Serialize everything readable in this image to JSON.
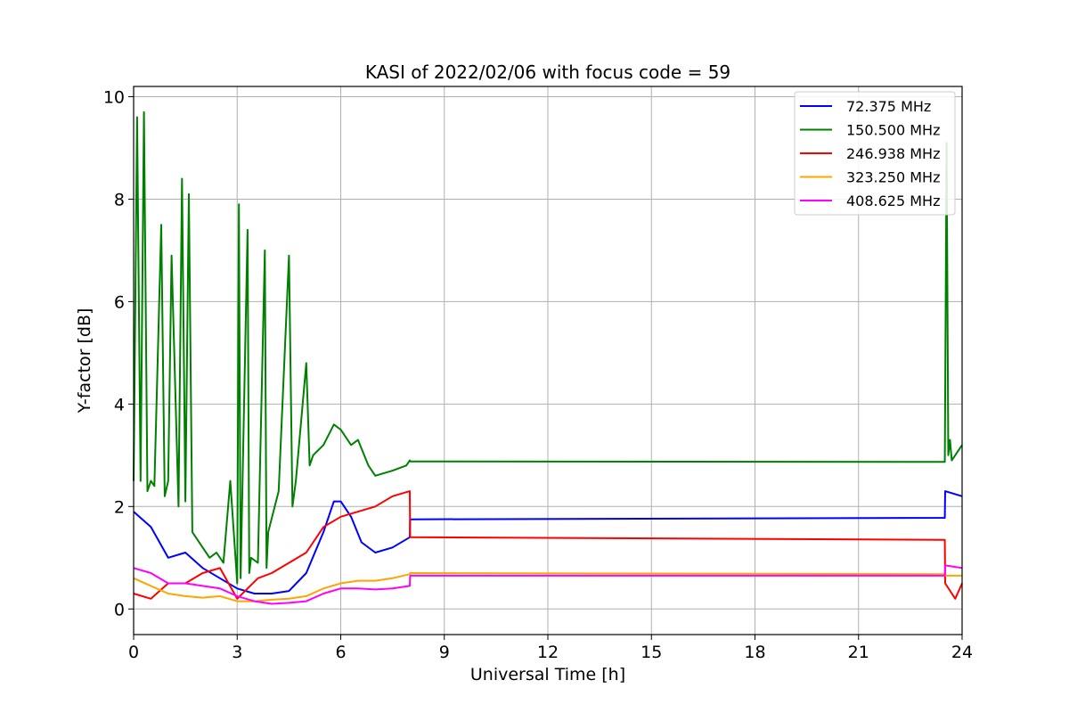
{
  "chart_data": {
    "type": "line",
    "title": "KASI of 2022/02/06 with focus code = 59",
    "xlabel": "Universal Time [h]",
    "ylabel": "Y-factor [dB]",
    "xlim": [
      0,
      24
    ],
    "ylim": [
      -0.5,
      10.2
    ],
    "x_ticks": [
      0,
      3,
      6,
      9,
      12,
      15,
      18,
      21,
      24
    ],
    "y_ticks": [
      0,
      2,
      4,
      6,
      8,
      10
    ],
    "grid": true,
    "legend_position": "top-right",
    "series": [
      {
        "name": " 72.375 MHz",
        "color": "#0000ff",
        "x": [
          0,
          0.5,
          1,
          1.5,
          2,
          2.5,
          3,
          3.5,
          4,
          4.5,
          5,
          5.5,
          5.8,
          6,
          6.3,
          6.6,
          7,
          7.5,
          8,
          8.01,
          23.5,
          23.51,
          24
        ],
        "y": [
          1.9,
          1.6,
          1.0,
          1.1,
          0.8,
          0.6,
          0.4,
          0.3,
          0.3,
          0.35,
          0.7,
          1.5,
          2.1,
          2.1,
          1.8,
          1.3,
          1.1,
          1.2,
          1.4,
          1.75,
          1.78,
          2.3,
          2.2
        ]
      },
      {
        "name": "150.500 MHz",
        "color": "#008000",
        "x": [
          0,
          0.1,
          0.2,
          0.3,
          0.4,
          0.5,
          0.6,
          0.8,
          0.9,
          1.0,
          1.1,
          1.3,
          1.4,
          1.5,
          1.6,
          1.7,
          1.8,
          2.0,
          2.2,
          2.4,
          2.6,
          2.8,
          3.0,
          3.05,
          3.1,
          3.3,
          3.35,
          3.4,
          3.6,
          3.8,
          3.85,
          3.9,
          4.2,
          4.5,
          4.6,
          4.7,
          5.0,
          5.1,
          5.2,
          5.5,
          5.8,
          6.0,
          6.3,
          6.5,
          6.8,
          7.0,
          7.5,
          7.9,
          8.0,
          8.01,
          23.5,
          23.55,
          23.6,
          23.65,
          23.7,
          24
        ],
        "y": [
          2.5,
          9.6,
          2.5,
          9.7,
          2.3,
          2.5,
          2.4,
          7.5,
          2.2,
          2.5,
          6.9,
          2.0,
          8.4,
          2.1,
          8.1,
          1.5,
          1.4,
          1.2,
          1.0,
          1.1,
          0.9,
          2.5,
          0.5,
          7.9,
          0.6,
          7.4,
          0.7,
          1.0,
          0.9,
          7.0,
          0.8,
          1.5,
          2.3,
          6.9,
          2.0,
          2.5,
          4.8,
          2.8,
          3.0,
          3.2,
          3.6,
          3.5,
          3.2,
          3.3,
          2.8,
          2.6,
          2.7,
          2.8,
          2.9,
          2.88,
          2.87,
          9.1,
          3.0,
          3.3,
          2.9,
          3.2
        ]
      },
      {
        "name": "246.938 MHz",
        "color": "#ff0000",
        "x": [
          0,
          0.5,
          1,
          1.5,
          2,
          2.5,
          3,
          3.3,
          3.6,
          4,
          4.5,
          5,
          5.5,
          6,
          6.5,
          7,
          7.5,
          8,
          8.01,
          23.5,
          23.51,
          23.8,
          24
        ],
        "y": [
          0.3,
          0.2,
          0.5,
          0.5,
          0.7,
          0.8,
          0.2,
          0.4,
          0.6,
          0.7,
          0.9,
          1.1,
          1.6,
          1.8,
          1.9,
          2.0,
          2.2,
          2.3,
          1.4,
          1.35,
          0.5,
          0.2,
          0.5
        ]
      },
      {
        "name": "323.250 MHz",
        "color": "#ffa500",
        "x": [
          0,
          0.5,
          1,
          1.5,
          2,
          2.5,
          3,
          3.5,
          4,
          4.5,
          5,
          5.5,
          6,
          6.5,
          7,
          7.5,
          8,
          8.01,
          23.5,
          23.51,
          24
        ],
        "y": [
          0.6,
          0.45,
          0.3,
          0.25,
          0.22,
          0.25,
          0.15,
          0.15,
          0.18,
          0.2,
          0.25,
          0.4,
          0.5,
          0.55,
          0.55,
          0.6,
          0.68,
          0.7,
          0.68,
          0.65,
          0.65
        ]
      },
      {
        "name": "408.625 MHz",
        "color": "#ff00ff",
        "x": [
          0,
          0.5,
          1,
          1.5,
          2,
          2.5,
          3,
          3.5,
          4,
          4.5,
          5,
          5.5,
          6,
          6.5,
          7,
          7.5,
          8,
          8.01,
          23.5,
          23.51,
          24
        ],
        "y": [
          0.8,
          0.7,
          0.5,
          0.5,
          0.45,
          0.4,
          0.25,
          0.15,
          0.1,
          0.12,
          0.15,
          0.3,
          0.4,
          0.4,
          0.38,
          0.4,
          0.45,
          0.65,
          0.65,
          0.85,
          0.8
        ]
      }
    ]
  }
}
